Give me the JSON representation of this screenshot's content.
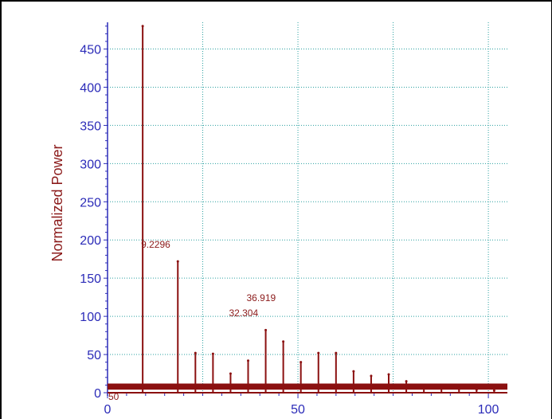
{
  "chart_data": {
    "type": "bar",
    "title": "",
    "xlabel": "",
    "ylabel": "Normalized Power",
    "xlim": [
      0,
      105
    ],
    "ylim": [
      0,
      485
    ],
    "x_ticks": [
      0,
      50,
      100
    ],
    "y_ticks": [
      0,
      50,
      100,
      150,
      200,
      250,
      300,
      350,
      400,
      450
    ],
    "grid": true,
    "colors": {
      "bars": "#8b1010",
      "grid": "#2aa0a0",
      "axis": "#2b2bb8",
      "label": "#8b1a1a"
    },
    "x": [
      9.2296,
      18.459,
      23.074,
      27.689,
      32.304,
      36.919,
      41.533,
      46.148,
      50.763,
      55.378,
      59.993,
      64.607,
      69.222,
      73.837,
      78.452,
      83.067,
      87.681,
      92.296,
      96.911,
      101.526
    ],
    "values": [
      480,
      172,
      52,
      51,
      25,
      42,
      82,
      67,
      40,
      52,
      52,
      28,
      22,
      24,
      15,
      9,
      7,
      5,
      4,
      3
    ],
    "data_labels": [
      {
        "text": "9.2296",
        "x": 9.2296,
        "y": 190
      },
      {
        "text": "36.919",
        "x": 36.919,
        "y": 120
      },
      {
        "text": "32.304",
        "x": 32.304,
        "y": 100
      }
    ],
    "origin_label": "50"
  }
}
